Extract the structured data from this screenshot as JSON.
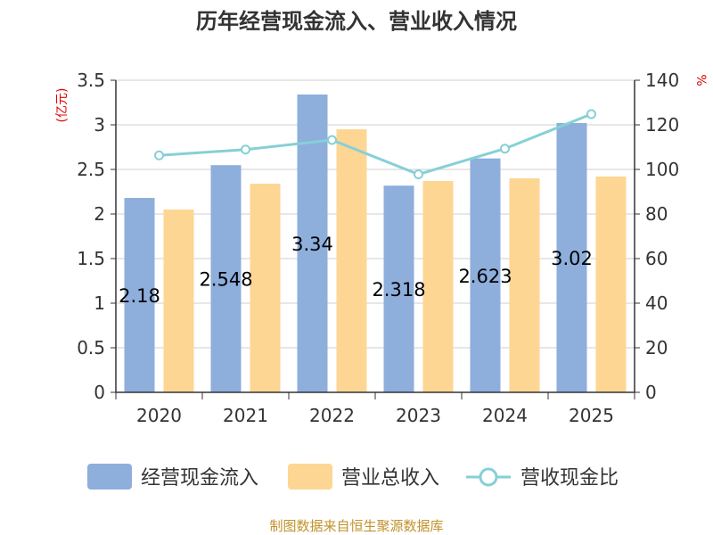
{
  "chart_data": {
    "type": "bar",
    "title": "历年经营现金流入、营业收入情况",
    "categories": [
      "2020",
      "2021",
      "2022",
      "2023",
      "2024",
      "2025"
    ],
    "y_left": {
      "unit_label": "(亿元)",
      "range": [
        0,
        3.5
      ],
      "ticks": [
        "0",
        "0.5",
        "1",
        "1.5",
        "2",
        "2.5",
        "3",
        "3.5"
      ]
    },
    "y_right": {
      "unit_label": "%",
      "range": [
        0,
        140
      ],
      "ticks": [
        "0",
        "20",
        "40",
        "60",
        "80",
        "100",
        "120",
        "140"
      ]
    },
    "series": [
      {
        "name": "经营现金流入",
        "type": "bar",
        "axis": "left",
        "color": "#8eaedc",
        "values": [
          2.18,
          2.548,
          3.34,
          2.318,
          2.623,
          3.02
        ],
        "labels": [
          "2.18",
          "2.548",
          "3.34",
          "2.318",
          "2.623",
          "3.02"
        ]
      },
      {
        "name": "营业总收入",
        "type": "bar",
        "axis": "left",
        "color": "#fed693",
        "values": [
          2.05,
          2.34,
          2.95,
          2.37,
          2.4,
          2.42
        ]
      },
      {
        "name": "营收现金比",
        "type": "line",
        "axis": "right",
        "color": "#86d0d6",
        "values": [
          106.3,
          108.9,
          113.2,
          97.8,
          109.3,
          124.8
        ]
      }
    ],
    "legend_position": "bottom",
    "grid": "horizontal"
  },
  "footer": {
    "source": "制图数据来自恒生聚源数据库"
  }
}
